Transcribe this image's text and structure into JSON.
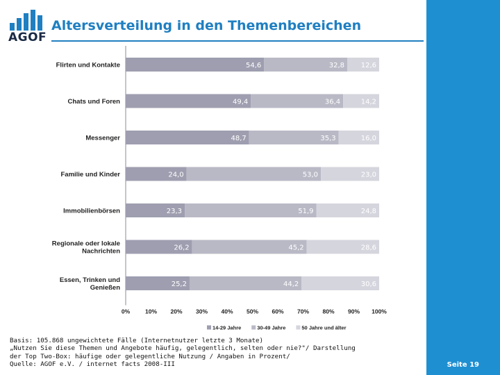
{
  "header": {
    "logo_text": "AGOF",
    "title": "Altersverteilung in den Themenbereichen"
  },
  "chart_data": {
    "type": "bar",
    "orientation": "horizontal",
    "stacked": true,
    "categories": [
      [
        "Flirten und Kontakte"
      ],
      [
        "Chats und Foren"
      ],
      [
        "Messenger"
      ],
      [
        "Familie und Kinder"
      ],
      [
        "Immobilienbörsen"
      ],
      [
        "Regionale oder lokale",
        "Nachrichten"
      ],
      [
        "Essen, Trinken und",
        "Genießen"
      ]
    ],
    "series": [
      {
        "name": "14-29 Jahre",
        "color": "#9e9eb0",
        "labels": [
          "54,6",
          "49,4",
          "48,7",
          "24,0",
          "23,3",
          "26,2",
          "25,2"
        ],
        "values": [
          54.6,
          49.4,
          48.7,
          24.0,
          23.3,
          26.2,
          25.2
        ]
      },
      {
        "name": "30-49 Jahre",
        "color": "#b9b9c6",
        "labels": [
          "32,8",
          "36,4",
          "35,3",
          "53,0",
          "51,9",
          "45,2",
          "44,2"
        ],
        "values": [
          32.8,
          36.4,
          35.3,
          53.0,
          51.9,
          45.2,
          44.2
        ]
      },
      {
        "name": "50 Jahre und älter",
        "color": "#d5d5de",
        "labels": [
          "12,6",
          "14,2",
          "16,0",
          "23,0",
          "24,8",
          "28,6",
          "30,6"
        ],
        "values": [
          12.6,
          14.2,
          16.0,
          23.0,
          24.8,
          28.6,
          30.6
        ]
      }
    ],
    "xlim": [
      0,
      100
    ],
    "xticks": [
      "0%",
      "10%",
      "20%",
      "30%",
      "40%",
      "50%",
      "60%",
      "70%",
      "80%",
      "90%",
      "100%"
    ],
    "legend_position": "bottom-right",
    "grid": false
  },
  "footer": {
    "lines": [
      "Basis: 105.868 ungewichtete Fälle (Internetnutzer letzte 3 Monate)",
      "„Nutzen Sie diese Themen und Angebote häufig, gelegentlich, selten oder nie?\"/ Darstellung",
      "der Top Two-Box: häufige oder gelegentliche Nutzung / Angaben in Prozent/",
      "Quelle: AGOF e.V. / internet facts 2008-III"
    ],
    "page": "Seite 19"
  }
}
